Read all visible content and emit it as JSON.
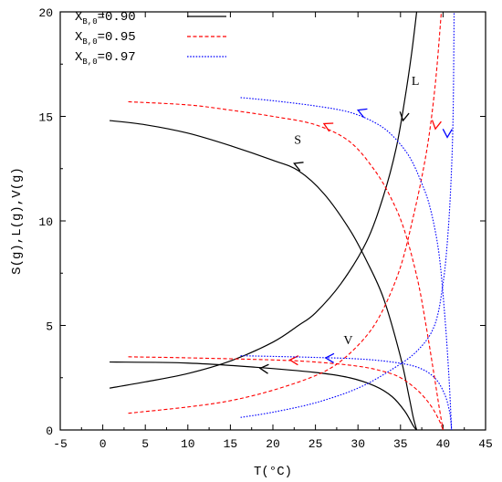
{
  "chart_data": {
    "type": "line",
    "xlabel": "T(°C)",
    "ylabel": "S(g),L(g),V(g)",
    "xlim": [
      -5,
      45
    ],
    "ylim": [
      0,
      20
    ],
    "x_ticks": [
      -5,
      0,
      5,
      10,
      15,
      20,
      25,
      30,
      35,
      40,
      45
    ],
    "y_ticks": [
      0,
      5,
      10,
      15,
      20
    ],
    "x_tick_labels": [
      "-5",
      "0",
      "5",
      "10",
      "15",
      "20",
      "25",
      "30",
      "35",
      "40",
      "45"
    ],
    "y_tick_labels": [
      "0",
      "5",
      "10",
      "15",
      "20"
    ],
    "grid": false,
    "legend_position": "top-left",
    "legend": [
      {
        "prefix": "X",
        "sub": "B,0",
        "value": "=0.90",
        "color": "#000000",
        "dash": "solid"
      },
      {
        "prefix": "X",
        "sub": "B,0",
        "value": "=0.95",
        "color": "#ff0000",
        "dash": "dashed"
      },
      {
        "prefix": "X",
        "sub": "B,0",
        "value": "=0.97",
        "color": "#0000ff",
        "dash": "dotted"
      }
    ],
    "annotations": [
      {
        "text": "S",
        "x": 22.5,
        "y": 13.7
      },
      {
        "text": "L",
        "x": 36.3,
        "y": 16.5
      },
      {
        "text": "V",
        "x": 28.3,
        "y": 4.1
      }
    ],
    "series": [
      {
        "curve": "S",
        "group": 0,
        "color": "#000000",
        "dash": "solid",
        "points": [
          [
            0.8,
            14.8
          ],
          [
            5,
            14.6
          ],
          [
            10,
            14.2
          ],
          [
            15,
            13.6
          ],
          [
            20,
            12.9
          ],
          [
            23,
            12.4
          ],
          [
            26,
            11.3
          ],
          [
            29,
            9.6
          ],
          [
            31,
            8.1
          ],
          [
            33,
            6.3
          ],
          [
            35,
            3.5
          ],
          [
            36,
            1.6
          ],
          [
            36.5,
            0.6
          ],
          [
            36.9,
            0
          ]
        ],
        "arrows": [
          [
            22.5,
            12.75
          ]
        ]
      },
      {
        "curve": "L",
        "group": 0,
        "color": "#000000",
        "dash": "solid",
        "points": [
          [
            0.8,
            2.0
          ],
          [
            5,
            2.3
          ],
          [
            10,
            2.7
          ],
          [
            15,
            3.3
          ],
          [
            20,
            4.2
          ],
          [
            23,
            5.0
          ],
          [
            25,
            5.6
          ],
          [
            28,
            7.0
          ],
          [
            31,
            9.0
          ],
          [
            33,
            11.2
          ],
          [
            34.5,
            13.5
          ],
          [
            35.5,
            15.8
          ],
          [
            36.3,
            18.0
          ],
          [
            36.9,
            20.0
          ]
        ],
        "arrows": [
          [
            35.3,
            14.8
          ]
        ]
      },
      {
        "curve": "V",
        "group": 0,
        "color": "#000000",
        "dash": "solid",
        "points": [
          [
            0.8,
            3.25
          ],
          [
            10,
            3.2
          ],
          [
            18,
            3.0
          ],
          [
            25,
            2.75
          ],
          [
            29,
            2.5
          ],
          [
            32,
            2.1
          ],
          [
            34,
            1.6
          ],
          [
            35.5,
            0.9
          ],
          [
            36.5,
            0.2
          ],
          [
            36.9,
            0
          ]
        ],
        "arrows": [
          [
            18.5,
            2.95
          ]
        ]
      },
      {
        "curve": "S",
        "group": 1,
        "color": "#ff0000",
        "dash": "dashed",
        "points": [
          [
            3,
            15.7
          ],
          [
            10,
            15.55
          ],
          [
            15,
            15.3
          ],
          [
            20,
            15.0
          ],
          [
            25,
            14.6
          ],
          [
            29,
            13.8
          ],
          [
            32,
            12.4
          ],
          [
            34,
            11.0
          ],
          [
            35.5,
            9.5
          ],
          [
            37,
            7.2
          ],
          [
            38,
            5.0
          ],
          [
            39,
            2.5
          ],
          [
            39.5,
            1.2
          ],
          [
            40,
            0
          ]
        ],
        "arrows": [
          [
            26,
            14.65
          ]
        ]
      },
      {
        "curve": "L",
        "group": 1,
        "color": "#ff0000",
        "dash": "dashed",
        "points": [
          [
            3,
            0.8
          ],
          [
            10,
            1.1
          ],
          [
            15,
            1.4
          ],
          [
            20,
            1.9
          ],
          [
            25,
            2.6
          ],
          [
            28,
            3.3
          ],
          [
            31,
            4.5
          ],
          [
            33,
            5.8
          ],
          [
            35,
            7.8
          ],
          [
            36.5,
            10.2
          ],
          [
            37.7,
            12.5
          ],
          [
            38.5,
            14.5
          ],
          [
            39.2,
            17.0
          ],
          [
            39.8,
            20.0
          ]
        ],
        "arrows": [
          [
            39.1,
            14.4
          ]
        ]
      },
      {
        "curve": "V",
        "group": 1,
        "color": "#ff0000",
        "dash": "dashed",
        "points": [
          [
            3,
            3.5
          ],
          [
            10,
            3.45
          ],
          [
            20,
            3.35
          ],
          [
            25,
            3.25
          ],
          [
            30,
            3.05
          ],
          [
            33,
            2.8
          ],
          [
            35,
            2.5
          ],
          [
            37,
            1.9
          ],
          [
            38.5,
            1.2
          ],
          [
            39.5,
            0.5
          ],
          [
            40,
            0
          ]
        ],
        "arrows": [
          [
            22,
            3.35
          ]
        ]
      },
      {
        "curve": "S",
        "group": 2,
        "color": "#0000ff",
        "dash": "dotted",
        "points": [
          [
            16.2,
            15.9
          ],
          [
            20,
            15.75
          ],
          [
            25,
            15.5
          ],
          [
            29,
            15.2
          ],
          [
            32,
            14.7
          ],
          [
            34,
            14.1
          ],
          [
            36,
            13.1
          ],
          [
            37.5,
            11.8
          ],
          [
            38.5,
            10.6
          ],
          [
            39.5,
            8.5
          ],
          [
            40.2,
            5.5
          ],
          [
            40.7,
            2.5
          ],
          [
            41,
            0
          ]
        ],
        "arrows": [
          [
            30,
            15.3
          ]
        ]
      },
      {
        "curve": "L",
        "group": 2,
        "color": "#0000ff",
        "dash": "dotted",
        "points": [
          [
            16.2,
            0.6
          ],
          [
            20,
            0.85
          ],
          [
            25,
            1.3
          ],
          [
            30,
            2.0
          ],
          [
            34,
            2.9
          ],
          [
            37,
            3.8
          ],
          [
            39,
            5.0
          ],
          [
            40,
            7.0
          ],
          [
            40.6,
            9.5
          ],
          [
            41,
            12.5
          ],
          [
            41.2,
            15.5
          ],
          [
            41.3,
            20.0
          ]
        ],
        "arrows": [
          [
            40.5,
            14.0
          ]
        ]
      },
      {
        "curve": "V",
        "group": 2,
        "color": "#0000ff",
        "dash": "dotted",
        "points": [
          [
            16.2,
            3.55
          ],
          [
            20,
            3.52
          ],
          [
            25,
            3.47
          ],
          [
            30,
            3.4
          ],
          [
            34,
            3.25
          ],
          [
            37,
            3.0
          ],
          [
            39,
            2.5
          ],
          [
            40.2,
            1.7
          ],
          [
            40.8,
            0.8
          ],
          [
            41,
            0
          ]
        ],
        "arrows": [
          [
            26.2,
            3.45
          ]
        ]
      }
    ]
  }
}
